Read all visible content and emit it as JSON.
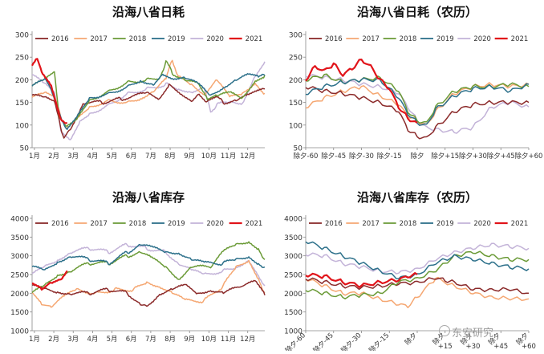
{
  "watermark": "东安研究",
  "legend_colors": {
    "2016": "#8b2a2a",
    "2017": "#f5a772",
    "2018": "#6a9a36",
    "2019": "#2c708a",
    "2020": "#c3b3d8",
    "2021": "#e1141a"
  },
  "chart_data": [
    {
      "type": "line",
      "title": "沿海八省日耗",
      "x_axis": "month",
      "ylim": [
        50,
        300
      ],
      "yticks": [
        50,
        100,
        150,
        200,
        250,
        300
      ],
      "xtick_labels": [
        "1月",
        "2月",
        "3月",
        "4月",
        "5月",
        "6月",
        "7月",
        "8月",
        "9月",
        "10月",
        "11月",
        "12月"
      ],
      "series": [
        {
          "name": "2016",
          "x": [
            0,
            20,
            35,
            45,
            50,
            60,
            80,
            110,
            140,
            180,
            200,
            215,
            250,
            262,
            275,
            290,
            300,
            320,
            340,
            365
          ],
          "values": [
            165,
            160,
            150,
            95,
            72,
            90,
            150,
            150,
            158,
            170,
            160,
            190,
            155,
            170,
            150,
            160,
            150,
            155,
            165,
            180
          ]
        },
        {
          "name": "2017",
          "x": [
            0,
            20,
            35,
            45,
            55,
            70,
            90,
            120,
            150,
            170,
            190,
            210,
            220,
            230,
            250,
            270,
            290,
            310,
            330,
            350,
            365
          ],
          "values": [
            160,
            170,
            160,
            120,
            90,
            110,
            140,
            155,
            150,
            160,
            175,
            200,
            245,
            205,
            190,
            170,
            200,
            160,
            170,
            195,
            170
          ]
        },
        {
          "name": "2018",
          "x": [
            0,
            20,
            35,
            42,
            55,
            70,
            90,
            120,
            150,
            180,
            200,
            210,
            220,
            240,
            260,
            275,
            290,
            310,
            330,
            350,
            365
          ],
          "values": [
            185,
            200,
            215,
            120,
            95,
            110,
            155,
            175,
            195,
            200,
            205,
            240,
            215,
            200,
            190,
            155,
            165,
            170,
            160,
            200,
            210
          ]
        },
        {
          "name": "2019",
          "x": [
            0,
            20,
            30,
            45,
            55,
            70,
            90,
            120,
            150,
            170,
            190,
            205,
            220,
            240,
            260,
            280,
            300,
            320,
            340,
            355,
            365
          ],
          "values": [
            185,
            200,
            180,
            120,
            88,
            115,
            160,
            170,
            185,
            200,
            190,
            215,
            205,
            205,
            190,
            165,
            185,
            200,
            210,
            205,
            210
          ]
        },
        {
          "name": "2020",
          "x": [
            0,
            20,
            35,
            45,
            60,
            75,
            90,
            120,
            150,
            180,
            210,
            230,
            250,
            270,
            280,
            290,
            310,
            330,
            350,
            365
          ],
          "values": [
            210,
            190,
            170,
            90,
            70,
            110,
            125,
            145,
            170,
            180,
            190,
            180,
            175,
            180,
            130,
            145,
            150,
            150,
            210,
            240
          ]
        },
        {
          "name": "2021",
          "x": [
            0,
            8,
            15,
            30,
            45,
            55
          ],
          "values": [
            230,
            245,
            220,
            190,
            115,
            105
          ]
        }
      ]
    },
    {
      "type": "line",
      "title": "沿海八省日耗（农历）",
      "x_axis": "lunar",
      "ylim": [
        50,
        300
      ],
      "yticks": [
        50,
        100,
        150,
        200,
        250,
        300
      ],
      "xtick_labels": [
        "除夕-60",
        "除夕-45",
        "除夕-30",
        "除夕-15",
        "除夕",
        "除夕+15",
        "除夕+30",
        "除夕+45",
        "除夕+60"
      ],
      "series": [
        {
          "name": "2016",
          "x": [
            -60,
            -50,
            -40,
            -30,
            -20,
            -10,
            -5,
            0,
            5,
            10,
            20,
            30,
            40,
            50,
            60
          ],
          "values": [
            185,
            175,
            170,
            160,
            150,
            130,
            90,
            75,
            72,
            95,
            130,
            145,
            150,
            150,
            150
          ]
        },
        {
          "name": "2017",
          "x": [
            -60,
            -50,
            -40,
            -30,
            -20,
            -10,
            -5,
            0,
            5,
            10,
            20,
            30,
            40,
            50,
            60
          ],
          "values": [
            140,
            160,
            175,
            185,
            165,
            145,
            120,
            110,
            100,
            130,
            170,
            185,
            190,
            185,
            190
          ]
        },
        {
          "name": "2018",
          "x": [
            -60,
            -50,
            -40,
            -30,
            -20,
            -10,
            -5,
            0,
            5,
            10,
            20,
            30,
            40,
            50,
            60
          ],
          "values": [
            200,
            210,
            195,
            200,
            205,
            175,
            130,
            110,
            105,
            140,
            175,
            185,
            185,
            190,
            185
          ]
        },
        {
          "name": "2019",
          "x": [
            -60,
            -50,
            -40,
            -30,
            -20,
            -10,
            -5,
            0,
            5,
            10,
            20,
            30,
            40,
            50,
            60
          ],
          "values": [
            170,
            185,
            195,
            200,
            200,
            160,
            125,
            105,
            100,
            135,
            165,
            180,
            185,
            175,
            190
          ]
        },
        {
          "name": "2020",
          "x": [
            -60,
            -50,
            -40,
            -30,
            -20,
            -10,
            -5,
            0,
            5,
            10,
            20,
            30,
            40,
            50,
            60
          ],
          "values": [
            210,
            205,
            200,
            190,
            185,
            170,
            140,
            110,
            95,
            90,
            85,
            95,
            140,
            150,
            140
          ]
        },
        {
          "name": "2021",
          "x": [
            -60,
            -55,
            -50,
            -45,
            -40,
            -35,
            -30,
            -25,
            -20,
            -15,
            -10,
            -5,
            0
          ],
          "values": [
            200,
            230,
            220,
            235,
            210,
            225,
            245,
            230,
            200,
            180,
            140,
            115,
            105
          ]
        }
      ]
    },
    {
      "type": "line",
      "title": "沿海八省库存",
      "x_axis": "month",
      "ylim": [
        1000,
        4000
      ],
      "yticks": [
        1000,
        1500,
        2000,
        2500,
        3000,
        3500,
        4000
      ],
      "xtick_labels": [
        "1月",
        "2月",
        "3月",
        "4月",
        "5月",
        "6月",
        "7月",
        "8月",
        "9月",
        "10月",
        "11月",
        "12月"
      ],
      "series": [
        {
          "name": "2016",
          "x": [
            0,
            20,
            40,
            60,
            90,
            120,
            150,
            170,
            180,
            200,
            220,
            240,
            260,
            280,
            300,
            330,
            350,
            365
          ],
          "values": [
            2200,
            2100,
            2050,
            2000,
            2000,
            2100,
            2000,
            1700,
            1650,
            2000,
            2100,
            2200,
            2000,
            2100,
            2000,
            2200,
            2300,
            1950
          ]
        },
        {
          "name": "2017",
          "x": [
            0,
            15,
            30,
            50,
            70,
            100,
            130,
            160,
            180,
            200,
            220,
            240,
            270,
            300,
            320,
            340,
            355,
            365
          ],
          "values": [
            2000,
            1700,
            1650,
            1900,
            2100,
            2000,
            2100,
            2100,
            2300,
            2200,
            2000,
            1800,
            1800,
            2200,
            2700,
            2900,
            2400,
            2000
          ]
        },
        {
          "name": "2018",
          "x": [
            0,
            20,
            40,
            60,
            90,
            120,
            150,
            170,
            190,
            210,
            230,
            250,
            280,
            300,
            320,
            340,
            355,
            365
          ],
          "values": [
            2000,
            2200,
            2500,
            2600,
            2800,
            2800,
            3000,
            3100,
            2900,
            2700,
            2400,
            2700,
            2700,
            3100,
            3300,
            3400,
            3200,
            2900
          ]
        },
        {
          "name": "2019",
          "x": [
            0,
            20,
            40,
            60,
            90,
            120,
            150,
            170,
            190,
            210,
            230,
            250,
            270,
            300,
            320,
            340,
            355,
            365
          ],
          "values": [
            2700,
            2600,
            2850,
            3000,
            2900,
            2800,
            3100,
            3300,
            3200,
            3100,
            3100,
            2900,
            2800,
            2800,
            2900,
            3000,
            2800,
            2700
          ]
        },
        {
          "name": "2020",
          "x": [
            0,
            20,
            40,
            60,
            90,
            120,
            150,
            180,
            210,
            230,
            250,
            270,
            300,
            320,
            340,
            355,
            365
          ],
          "values": [
            2500,
            2700,
            2900,
            3100,
            3200,
            3100,
            3300,
            3200,
            3100,
            2800,
            2600,
            2500,
            2600,
            2700,
            2900,
            2500,
            2200
          ]
        },
        {
          "name": "2021",
          "x": [
            0,
            15,
            30,
            45,
            55
          ],
          "values": [
            2250,
            2100,
            2300,
            2400,
            2600
          ]
        }
      ]
    },
    {
      "type": "line",
      "title": "沿海八省库存（农历）",
      "x_axis": "lunar",
      "ylim": [
        1000,
        4000
      ],
      "yticks": [
        1000,
        1500,
        2000,
        2500,
        3000,
        3500,
        4000
      ],
      "xtick_labels": [
        "除夕-60",
        "除夕-45",
        "除夕-30",
        "除夕-15",
        "除夕",
        "除夕+15",
        "除夕+30",
        "除夕+45",
        "除夕+60"
      ],
      "series": [
        {
          "name": "2016",
          "x": [
            -60,
            -50,
            -40,
            -30,
            -20,
            -10,
            0,
            10,
            15,
            20,
            30,
            40,
            50,
            60
          ],
          "values": [
            2400,
            2300,
            2200,
            2150,
            2200,
            2250,
            2300,
            2400,
            2350,
            2300,
            2100,
            2100,
            2100,
            2000
          ]
        },
        {
          "name": "2017",
          "x": [
            -60,
            -50,
            -40,
            -30,
            -20,
            -10,
            -5,
            0,
            10,
            20,
            30,
            40,
            50,
            60
          ],
          "values": [
            2400,
            2200,
            2000,
            2000,
            1850,
            1700,
            1650,
            1900,
            2400,
            2200,
            2000,
            1900,
            1850,
            1850
          ]
        },
        {
          "name": "2018",
          "x": [
            -60,
            -50,
            -40,
            -30,
            -20,
            -10,
            0,
            10,
            20,
            30,
            40,
            50,
            60
          ],
          "values": [
            2100,
            2000,
            1900,
            1950,
            2000,
            2300,
            2400,
            2600,
            3000,
            3100,
            3000,
            2900,
            2900
          ]
        },
        {
          "name": "2019",
          "x": [
            -60,
            -50,
            -40,
            -30,
            -20,
            -10,
            0,
            10,
            20,
            30,
            40,
            50,
            60
          ],
          "values": [
            3400,
            3200,
            3000,
            2800,
            2600,
            2400,
            2500,
            2800,
            3000,
            2900,
            2800,
            2700,
            2650
          ]
        },
        {
          "name": "2020",
          "x": [
            -60,
            -50,
            -40,
            -30,
            -20,
            -10,
            0,
            10,
            20,
            30,
            40,
            50,
            60
          ],
          "values": [
            3050,
            3000,
            2800,
            2700,
            2600,
            2550,
            2650,
            2900,
            3100,
            3200,
            3300,
            3250,
            3200
          ]
        },
        {
          "name": "2021",
          "x": [
            -60,
            -50,
            -40,
            -30,
            -20,
            -10,
            -5,
            0
          ],
          "values": [
            2500,
            2450,
            2300,
            2200,
            2300,
            2350,
            2450,
            2500
          ]
        }
      ]
    }
  ]
}
